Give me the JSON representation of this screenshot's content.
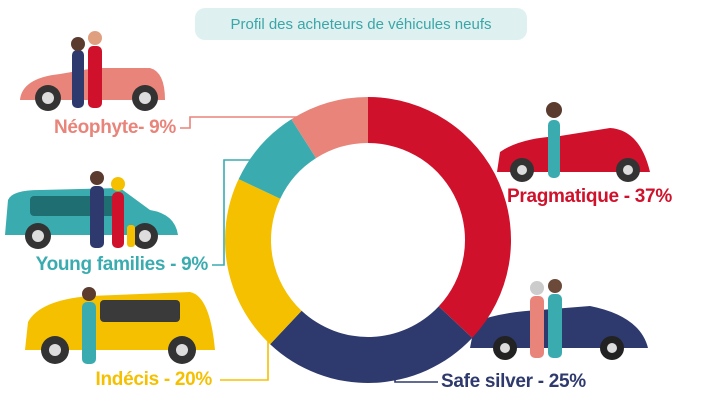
{
  "chart_data": {
    "type": "donut",
    "title": "Profil des acheteurs de véhicules neufs",
    "categories": [
      "Pragmatique -",
      "Safe silver -",
      "Indécis -",
      "Young families -",
      "Néophyte-"
    ],
    "values": [
      37,
      25,
      20,
      9,
      9
    ],
    "value_labels": [
      "37%",
      "25%",
      "20%",
      "9%",
      "9%"
    ],
    "colors": [
      "#d0112b",
      "#2e3a6e",
      "#f5c000",
      "#3aacb0",
      "#e8847a"
    ]
  }
}
